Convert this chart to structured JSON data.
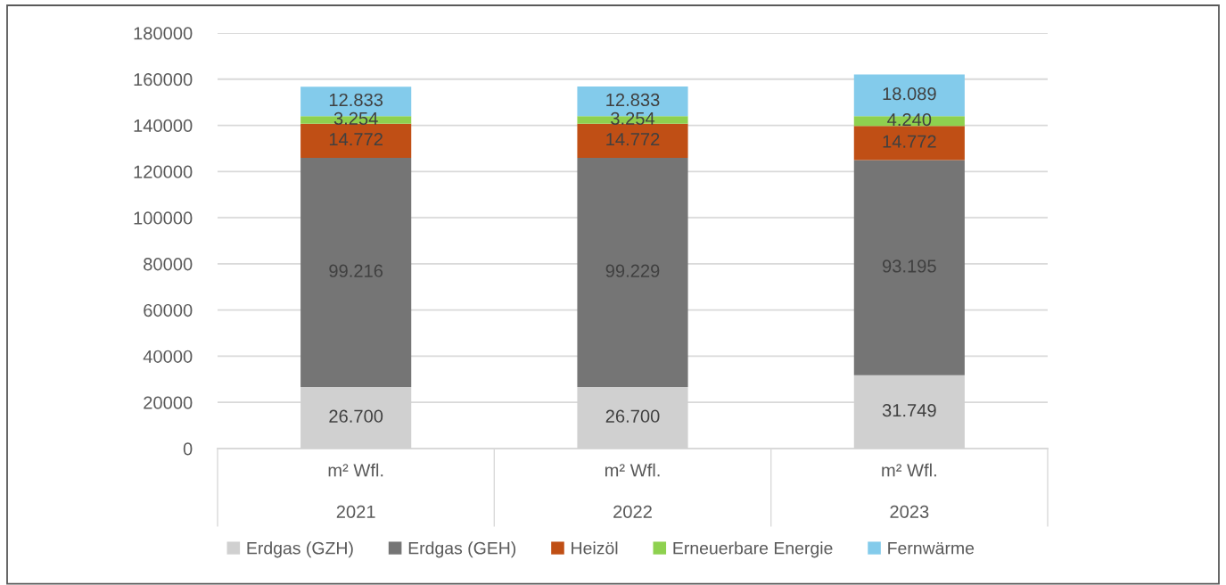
{
  "chart_data": {
    "type": "bar",
    "stacked": true,
    "categories": [
      "m² Wfl.\n2021",
      "m² Wfl.\n2022",
      "m² Wfl.\n2023"
    ],
    "series": [
      {
        "name": "Erdgas (GZH)",
        "color": "#d0d0d0",
        "values": [
          26700,
          26700,
          31749
        ],
        "value_labels": [
          "26.700",
          "26.700",
          "31.749"
        ]
      },
      {
        "name": "Erdgas (GEH)",
        "color": "#757575",
        "values": [
          99216,
          99229,
          93195
        ],
        "value_labels": [
          "99.216",
          "99.229",
          "93.195"
        ]
      },
      {
        "name": "Heizöl",
        "color": "#c04f15",
        "values": [
          14772,
          14772,
          14772
        ],
        "value_labels": [
          "14.772",
          "14.772",
          "14.772"
        ]
      },
      {
        "name": "Erneuerbare Energie",
        "color": "#8ed14f",
        "values": [
          3254,
          3254,
          4240
        ],
        "value_labels": [
          "3.254",
          "3.254",
          "4.240"
        ]
      },
      {
        "name": "Fernwärme",
        "color": "#83cbeb",
        "values": [
          12833,
          12833,
          18089
        ],
        "value_labels": [
          "12.833",
          "12.833",
          "18.089"
        ]
      }
    ],
    "ylim": [
      0,
      180000
    ],
    "yticks": [
      0,
      20000,
      40000,
      60000,
      80000,
      100000,
      120000,
      140000,
      160000,
      180000
    ],
    "grid": "y",
    "legend": "bottom"
  }
}
